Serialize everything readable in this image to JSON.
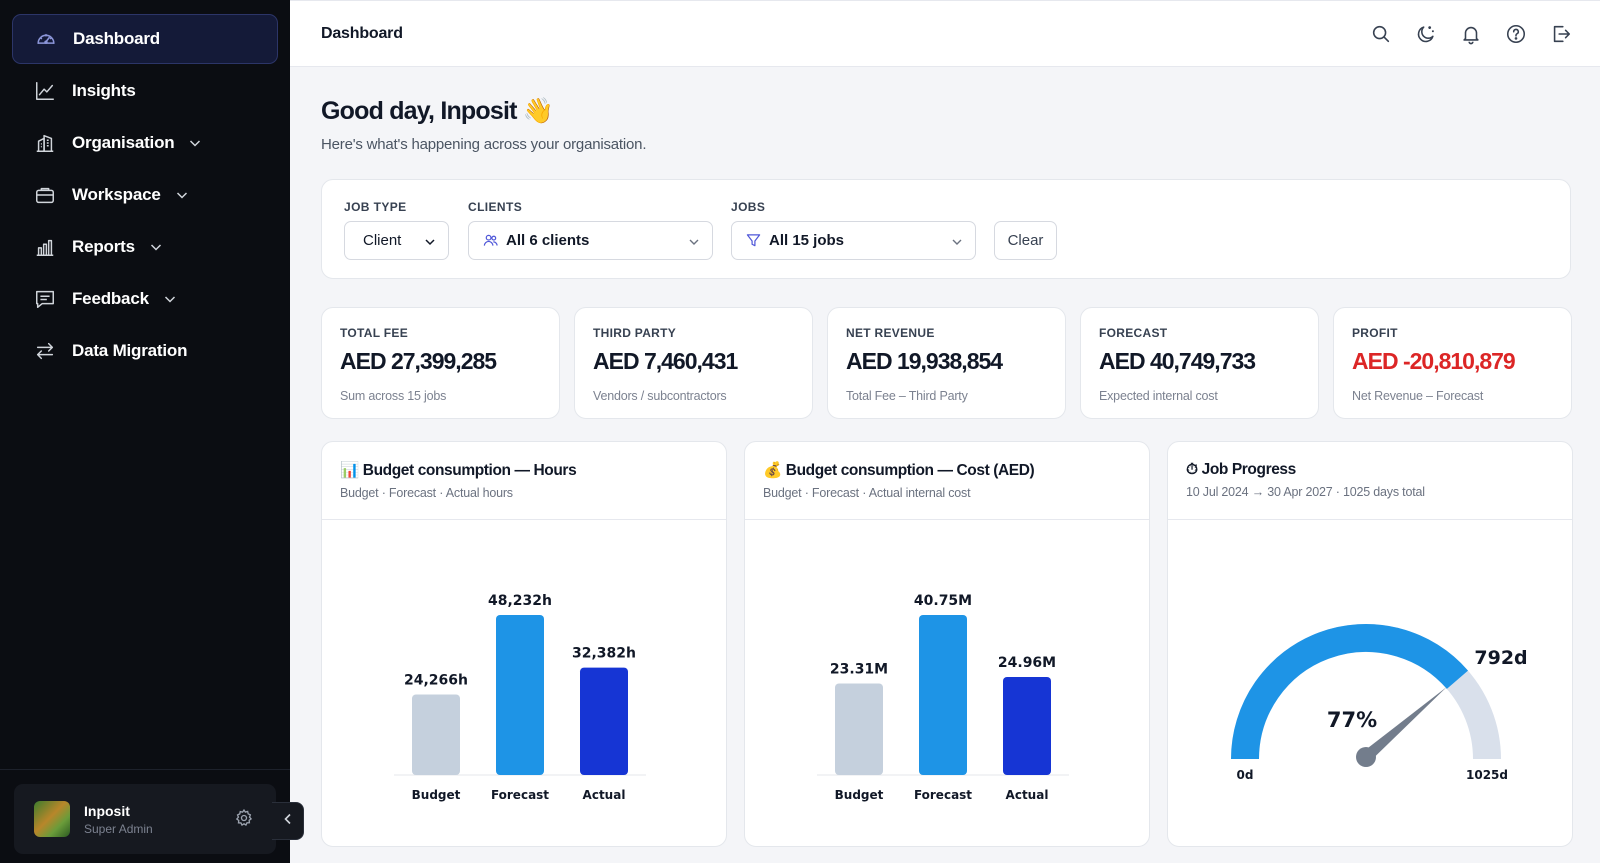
{
  "sidebar": {
    "items": [
      {
        "label": "Dashboard",
        "icon": "gauge-icon",
        "active": true
      },
      {
        "label": "Insights",
        "icon": "line-chart-icon"
      },
      {
        "label": "Organisation",
        "icon": "building-icon",
        "has_children": true
      },
      {
        "label": "Workspace",
        "icon": "briefcase-icon",
        "has_children": true
      },
      {
        "label": "Reports",
        "icon": "bar-chart-icon",
        "has_children": true
      },
      {
        "label": "Feedback",
        "icon": "message-icon",
        "has_children": true
      },
      {
        "label": "Data Migration",
        "icon": "arrows-exchange-icon"
      }
    ],
    "user": {
      "name": "Inposit",
      "role": "Super Admin"
    }
  },
  "header": {
    "title": "Dashboard"
  },
  "greeting": {
    "title": "Good day, Inposit 👋",
    "subtitle": "Here's what's happening across your organisation."
  },
  "filters": {
    "job_type": {
      "label": "JOB TYPE",
      "value": "Client"
    },
    "clients": {
      "label": "CLIENTS",
      "value": "All 6 clients"
    },
    "jobs": {
      "label": "JOBS",
      "value": "All 15 jobs"
    },
    "clear_label": "Clear"
  },
  "kpis": [
    {
      "label": "TOTAL FEE",
      "value": "AED 27,399,285",
      "sub": "Sum across 15 jobs"
    },
    {
      "label": "THIRD PARTY",
      "value": "AED 7,460,431",
      "sub": "Vendors / subcontractors"
    },
    {
      "label": "NET REVENUE",
      "value": "AED 19,938,854",
      "sub": "Total Fee – Third Party"
    },
    {
      "label": "FORECAST",
      "value": "AED 40,749,733",
      "sub": "Expected internal cost"
    },
    {
      "label": "PROFIT",
      "value": "AED -20,810,879",
      "sub": "Net Revenue – Forecast",
      "color": "#dc2626"
    }
  ],
  "colors": {
    "budget": "#c5d0dd",
    "forecast": "#1e94e6",
    "actual": "#1635d4",
    "gauge_fill": "#1e94e6",
    "gauge_track": "#d9e0eb",
    "needle": "#737d8c",
    "negative": "#dc2626"
  },
  "chart_data": [
    {
      "type": "bar",
      "title": "📊 Budget consumption — Hours",
      "subtitle": "Budget · Forecast · Actual hours",
      "categories": [
        "Budget",
        "Forecast",
        "Actual"
      ],
      "values": [
        24266,
        48232,
        32382
      ],
      "data_labels": [
        "24,266h",
        "48,232h",
        "32,382h"
      ]
    },
    {
      "type": "bar",
      "title": "💰 Budget consumption — Cost (AED)",
      "subtitle": "Budget · Forecast · Actual internal cost",
      "categories": [
        "Budget",
        "Forecast",
        "Actual"
      ],
      "values": [
        23.31,
        40.75,
        24.96
      ],
      "data_labels": [
        "23.31M",
        "40.75M",
        "24.96M"
      ]
    },
    {
      "type": "gauge",
      "title": "⏱ Job Progress",
      "subtitle": "10 Jul 2024 → 30 Apr 2027 · 1025 days total",
      "min": 0,
      "max": 1025,
      "value": 792,
      "value_label": "792d",
      "percent_label": "77%",
      "min_label": "0d",
      "max_label": "1025d"
    }
  ]
}
